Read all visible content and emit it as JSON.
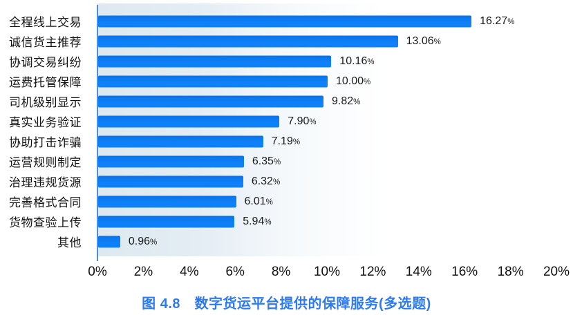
{
  "chart_data": {
    "type": "bar",
    "orientation": "horizontal",
    "title": "图 4.8　数字货运平台提供的保障服务(多选题)",
    "categories": [
      "全程线上交易",
      "诚信货主推荐",
      "协调交易纠纷",
      "运费托管保障",
      "司机级别显示",
      "真实业务验证",
      "协助打击诈骗",
      "运营规则制定",
      "治理违规货源",
      "完善格式合同",
      "货物查验上传",
      "其他"
    ],
    "values": [
      16.27,
      13.06,
      10.16,
      10.0,
      9.82,
      7.9,
      7.19,
      6.35,
      6.32,
      6.01,
      5.94,
      0.96
    ],
    "value_labels": [
      "16.27",
      "13.06",
      "10.16",
      "10.00",
      "9.82",
      "7.90",
      "7.19",
      "6.35",
      "6.32",
      "6.01",
      "5.94",
      "0.96"
    ],
    "value_suffix": "%",
    "xticks": [
      "0%",
      "2%",
      "4%",
      "6%",
      "8%",
      "10%",
      "12%",
      "14%",
      "16%",
      "18%",
      "20%"
    ],
    "xlim": [
      0,
      20
    ],
    "grid": "off",
    "legend": "none",
    "bar_color_top": "#0a72e8",
    "bar_color_bottom": "#0e80f8",
    "axis_line_color": "#4a90e2",
    "title_color": "#2d7bf4",
    "text_color": "#1a1a1a"
  }
}
